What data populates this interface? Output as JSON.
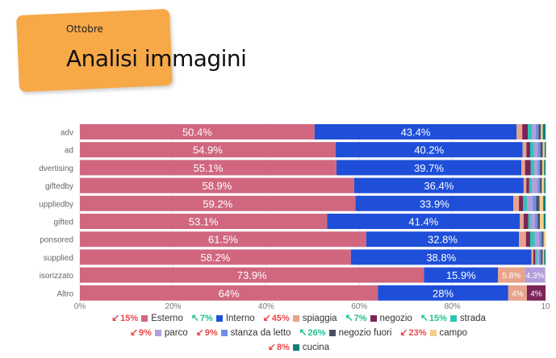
{
  "header": {
    "subtitle": "Ottobre",
    "title": "Analisi immagini"
  },
  "chart_data": {
    "type": "bar",
    "orientation": "horizontal",
    "stacked": "percent",
    "categories": [
      "adv",
      "ad",
      "dvertising",
      "giftedby",
      "uppliedby",
      "gifted",
      "ponsored",
      "supplied",
      "isorizzato",
      "Altro"
    ],
    "xlim": [
      0,
      100
    ],
    "xticks": [
      "0%",
      "20%",
      "40%",
      "60%",
      "80%",
      "10"
    ],
    "series": [
      {
        "name": "Esterno",
        "color": "#d0677f",
        "values": [
          50.4,
          54.9,
          55.1,
          58.9,
          59.2,
          53.1,
          61.5,
          58.2,
          73.9,
          64
        ],
        "labels": [
          "50.4%",
          "54.9%",
          "55.1%",
          "58.9%",
          "59.2%",
          "53.1%",
          "61.5%",
          "58.2%",
          "73.9%",
          "64%"
        ]
      },
      {
        "name": "Interno",
        "color": "#1f4fd8",
        "values": [
          43.4,
          40.2,
          39.7,
          36.4,
          33.9,
          41.4,
          32.8,
          38.8,
          15.9,
          28
        ],
        "labels": [
          "43.4%",
          "40.2%",
          "39.7%",
          "36.4%",
          "33.9%",
          "41.4%",
          "32.8%",
          "38.8%",
          "15.9%",
          "28%"
        ]
      },
      {
        "name": "spiaggia",
        "color": "#e8a38a",
        "values": [
          1.2,
          0.8,
          0.8,
          0.6,
          1.2,
          0.8,
          1.5,
          0.4,
          5.8,
          4
        ],
        "labels": [
          "",
          "",
          "",
          "",
          "",
          "",
          "",
          "",
          "5.8%",
          "4%"
        ]
      },
      {
        "name": "negozio",
        "color": "#7b2458",
        "values": [
          1.2,
          0.8,
          1.2,
          0.6,
          0.9,
          1.0,
          0.9,
          0.4,
          0,
          4
        ],
        "labels": [
          "",
          "",
          "",
          "",
          "",
          "",
          "",
          "",
          "",
          "4%"
        ]
      },
      {
        "name": "strada",
        "color": "#2ec4b6",
        "values": [
          0.9,
          0.8,
          0.8,
          0.6,
          0.8,
          0.5,
          1.0,
          0.4,
          0,
          0
        ],
        "labels": [
          "",
          "",
          "",
          "",
          "",
          "",
          "",
          "",
          "",
          ""
        ]
      },
      {
        "name": "parco",
        "color": "#b39ddb",
        "values": [
          0.8,
          0.8,
          0.7,
          1.2,
          1.2,
          0.9,
          1.0,
          0.4,
          4.3,
          0
        ],
        "labels": [
          "",
          "",
          "",
          "",
          "",
          "",
          "",
          "",
          "4.3%",
          ""
        ]
      },
      {
        "name": "stanza da letto",
        "color": "#6f8fe8",
        "values": [
          0.6,
          0.6,
          0.5,
          0.5,
          0.8,
          0.6,
          0.5,
          0.4,
          0,
          0
        ],
        "labels": [
          "",
          "",
          "",
          "",
          "",
          "",
          "",
          "",
          "",
          ""
        ]
      },
      {
        "name": "negozio fuori",
        "color": "#4a4f63",
        "values": [
          0.5,
          0.5,
          0.5,
          0.4,
          0.7,
          0.5,
          0.4,
          0.4,
          0,
          0
        ],
        "labels": [
          "",
          "",
          "",
          "",
          "",
          "",
          "",
          "",
          "",
          ""
        ]
      },
      {
        "name": "campo",
        "color": "#f4cf8a",
        "values": [
          0.4,
          0.4,
          0.4,
          0.5,
          0.8,
          0.8,
          0.4,
          0.3,
          0,
          0
        ],
        "labels": [
          "",
          "",
          "",
          "",
          "",
          "",
          "",
          "",
          "",
          ""
        ]
      },
      {
        "name": "cucina",
        "color": "#127f7a",
        "values": [
          0.6,
          0.3,
          0.3,
          0.3,
          0.5,
          0.4,
          0,
          0.3,
          0,
          0
        ],
        "labels": [
          "",
          "",
          "",
          "",
          "",
          "",
          "",
          "",
          "",
          ""
        ]
      }
    ],
    "legend": {
      "placement": "bottom",
      "items": [
        {
          "trend": "15%",
          "direction": "down",
          "name": "Esterno",
          "color": "#d0677f"
        },
        {
          "trend": "7%",
          "direction": "up",
          "name": "Interno",
          "color": "#1f4fd8"
        },
        {
          "trend": "45%",
          "direction": "down",
          "name": "spiaggia",
          "color": "#e8a38a"
        },
        {
          "trend": "7%",
          "direction": "up",
          "name": "negozio",
          "color": "#7b2458"
        },
        {
          "trend": "15%",
          "direction": "up",
          "name": "strada",
          "color": "#2ec4b6"
        },
        {
          "trend": "9%",
          "direction": "down",
          "name": "parco",
          "color": "#b39ddb"
        },
        {
          "trend": "9%",
          "direction": "down",
          "name": "stanza da letto",
          "color": "#6f8fe8"
        },
        {
          "trend": "26%",
          "direction": "up",
          "name": "negozio fuori",
          "color": "#4a4f63"
        },
        {
          "trend": "23%",
          "direction": "down",
          "name": "campo",
          "color": "#f4cf8a"
        },
        {
          "trend": "8%",
          "direction": "down",
          "name": "cucina",
          "color": "#127f7a"
        }
      ]
    },
    "trend_colors": {
      "up": "#1fbf8f",
      "down": "#e8484a"
    },
    "grid": true
  }
}
